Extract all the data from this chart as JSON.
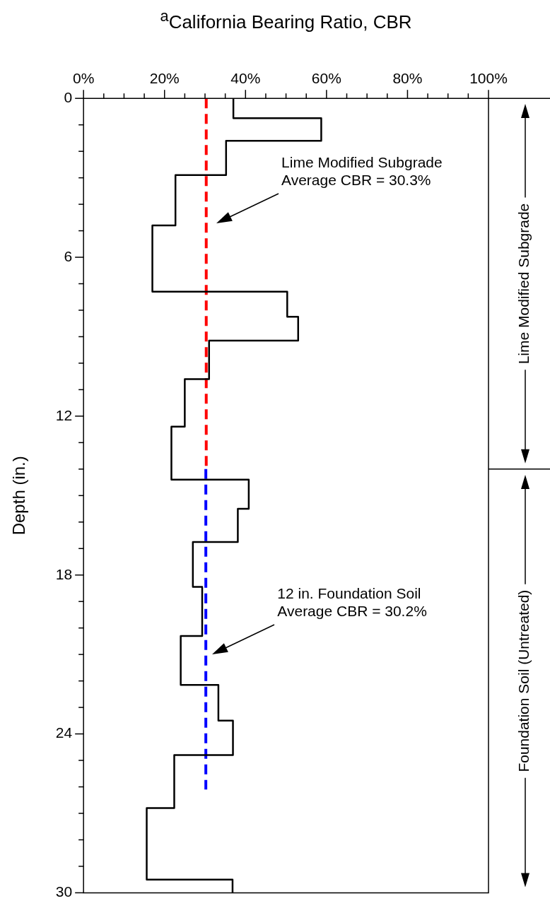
{
  "chart_data": {
    "type": "line",
    "xlabel": "$^{a}$California Bearing Ratio, CBR",
    "ylabel": "Depth (in.)",
    "xlim": [
      0,
      100
    ],
    "xticks": [
      {
        "value": 0,
        "label": "0%"
      },
      {
        "value": 5,
        "label": null
      },
      {
        "value": 10,
        "label": null
      },
      {
        "value": 15,
        "label": null
      },
      {
        "value": 20,
        "label": "20%"
      },
      {
        "value": 25,
        "label": null
      },
      {
        "value": 30,
        "label": null
      },
      {
        "value": 35,
        "label": null
      },
      {
        "value": 40,
        "label": "40%"
      },
      {
        "value": 45,
        "label": null
      },
      {
        "value": 50,
        "label": null
      },
      {
        "value": 55,
        "label": null
      },
      {
        "value": 60,
        "label": "60%"
      },
      {
        "value": 65,
        "label": null
      },
      {
        "value": 70,
        "label": null
      },
      {
        "value": 75,
        "label": null
      },
      {
        "value": 80,
        "label": "80%"
      },
      {
        "value": 85,
        "label": null
      },
      {
        "value": 90,
        "label": null
      },
      {
        "value": 95,
        "label": null
      },
      {
        "value": 100,
        "label": "100%"
      }
    ],
    "ylim": [
      30,
      0
    ],
    "yticks": [
      0,
      {
        "value": 1,
        "label": null
      },
      {
        "value": 2,
        "label": null
      },
      {
        "value": 3,
        "label": null
      },
      {
        "value": 4,
        "label": null
      },
      {
        "value": 5,
        "label": null
      },
      6,
      {
        "value": 7,
        "label": null
      },
      {
        "value": 8,
        "label": null
      },
      {
        "value": 9,
        "label": null
      },
      {
        "value": 10,
        "label": null
      },
      {
        "value": 11,
        "label": null
      },
      12,
      {
        "value": 13,
        "label": null
      },
      {
        "value": 14,
        "label": null
      },
      {
        "value": 15,
        "label": null
      },
      {
        "value": 16,
        "label": null
      },
      {
        "value": 17,
        "label": null
      },
      18,
      {
        "value": 19,
        "label": null
      },
      {
        "value": 20,
        "label": null
      },
      {
        "value": 21,
        "label": null
      },
      {
        "value": 22,
        "label": null
      },
      {
        "value": 23,
        "label": null
      },
      24,
      {
        "value": 25,
        "label": null
      },
      {
        "value": 26,
        "label": null
      },
      {
        "value": 27,
        "label": null
      },
      {
        "value": 28,
        "label": null
      },
      {
        "value": 29,
        "label": null
      },
      30
    ],
    "series": [
      {
        "color": "#000000",
        "line_style": "solid",
        "x": [
          37,
          37,
          58.7,
          58.7,
          35.2,
          35.2,
          22.7,
          22.7,
          17,
          17,
          50.3,
          50.3,
          53,
          53,
          31,
          31,
          25,
          25,
          21.7,
          21.7,
          40.8,
          40.8,
          38.1,
          38.1,
          27,
          27,
          29.3,
          29.3,
          24,
          24,
          33.3,
          33.3,
          36.9,
          36.9,
          22.4,
          22.4,
          15.6,
          15.6,
          36.8,
          36.8
        ],
        "values": [
          0,
          0.75,
          0.75,
          1.6,
          1.6,
          2.9,
          2.9,
          4.8,
          4.8,
          7.3,
          7.3,
          8.25,
          8.25,
          9.15,
          9.15,
          10.6,
          10.6,
          12.4,
          12.4,
          14.4,
          14.4,
          15.5,
          15.5,
          16.75,
          16.75,
          18.45,
          18.45,
          20.3,
          20.3,
          22.15,
          22.15,
          23.5,
          23.5,
          24.8,
          24.8,
          26.8,
          26.8,
          29.5,
          29.5,
          30
        ]
      },
      {
        "color": "#ff0000",
        "line_style": "dashed",
        "x": [
          30.3,
          30.3
        ],
        "values": [
          0,
          14
        ]
      },
      {
        "color": "#0000ff",
        "line_style": "dashed",
        "x": [
          30.2,
          30.2
        ],
        "values": [
          14,
          26.1
        ]
      }
    ],
    "annotations": [
      "Lime Modified Subgrade\nAverage CBR = 30.3%",
      "12 in. Foundation Soil\nAverage CBR = 30.2%",
      "Lime Modified Subgrade",
      "Foundation Soil (Untreated)"
    ],
    "marker": "none",
    "legend": false,
    "grid": false
  }
}
